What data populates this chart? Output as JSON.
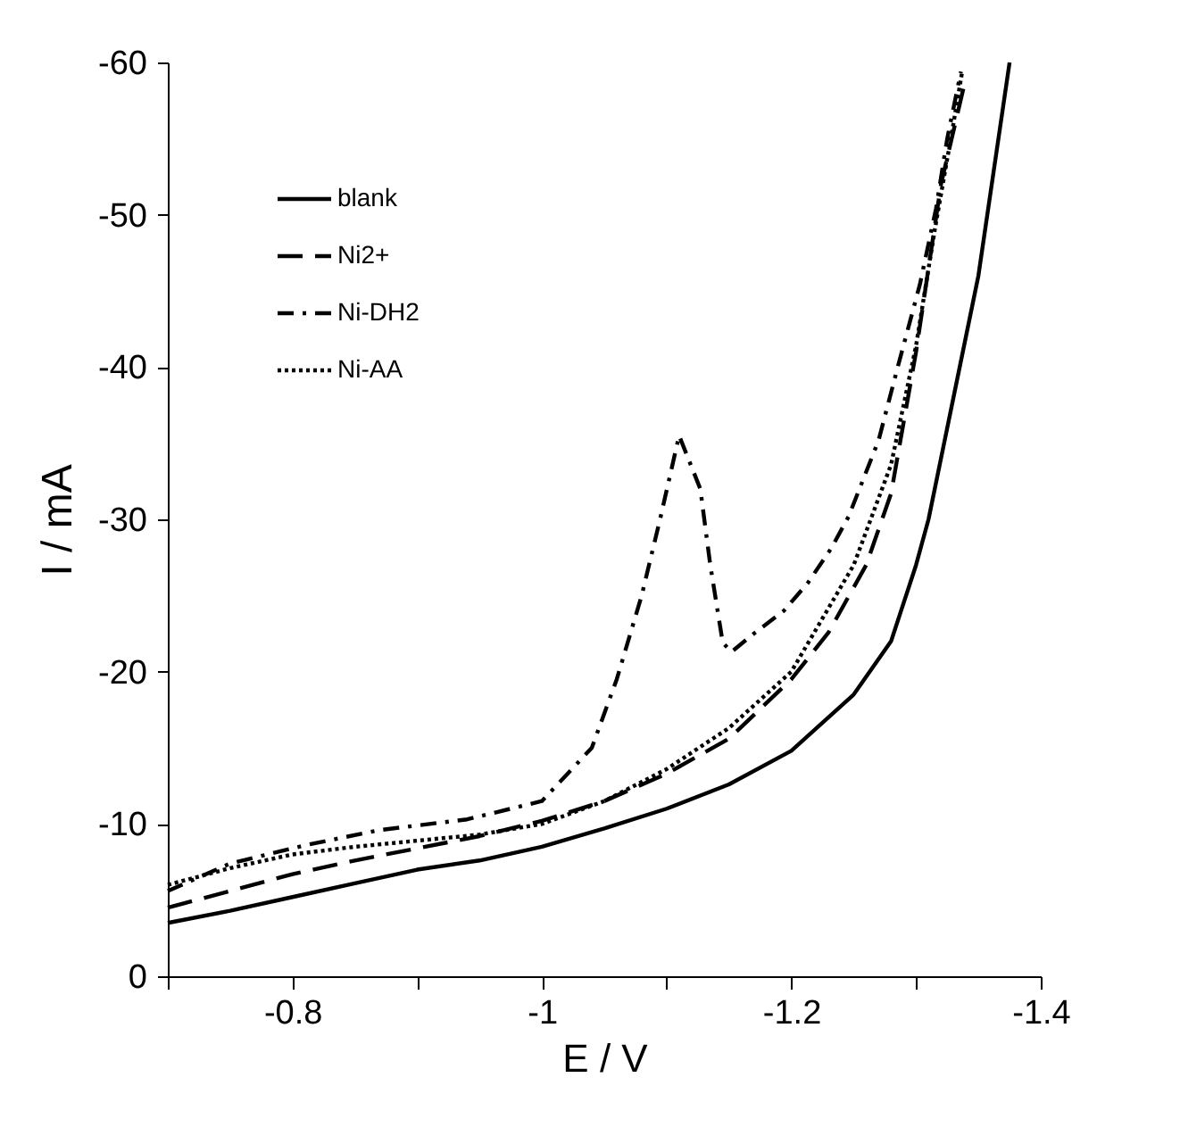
{
  "chart_data": {
    "type": "line",
    "xlabel": "E / V",
    "ylabel": "I / mA",
    "xlim": [
      -0.7,
      -1.4
    ],
    "xticks": [
      {
        "value": -0.7,
        "label": null
      },
      -0.8,
      {
        "value": -0.9,
        "label": null
      },
      -1,
      {
        "value": -1.1,
        "label": null
      },
      -1.2,
      {
        "value": -1.3,
        "label": null
      },
      -1.4
    ],
    "ylim": [
      0,
      -60
    ],
    "yticks": [
      0,
      -10,
      -20,
      -30,
      -40,
      -50,
      -60
    ],
    "grid": false,
    "legend": "top left",
    "series": [
      {
        "name": "blank",
        "color": "#000000",
        "line_style": "solid",
        "x": [
          -0.7,
          -0.75,
          -0.8,
          -0.85,
          -0.9,
          -0.95,
          -1.0,
          -1.05,
          -1.1,
          -1.15,
          -1.2,
          -1.25,
          -1.28,
          -1.3,
          -1.31,
          -1.33,
          -1.35,
          -1.375
        ],
        "values": [
          -3.5,
          -4.3,
          -5.2,
          -6.1,
          -7.0,
          -7.6,
          -8.5,
          -9.7,
          -11.0,
          -12.6,
          -14.8,
          -18.5,
          -22,
          -27,
          -30,
          -38,
          -46,
          -60
        ]
      },
      {
        "name": "Ni2+",
        "color": "#000000",
        "line_style": "dashed",
        "x": [
          -0.7,
          -0.75,
          -0.8,
          -0.85,
          -0.9,
          -0.95,
          -1.0,
          -1.05,
          -1.1,
          -1.15,
          -1.2,
          -1.23,
          -1.26,
          -1.28,
          -1.3,
          -1.32,
          -1.34
        ],
        "values": [
          -4.5,
          -5.6,
          -6.7,
          -7.6,
          -8.4,
          -9.2,
          -10.2,
          -11.5,
          -13.3,
          -15.6,
          -19.5,
          -22.6,
          -27,
          -31.7,
          -41,
          -52,
          -59
        ]
      },
      {
        "name": "Ni-DH2",
        "color": "#000000",
        "line_style": "dashdot",
        "x": [
          -0.7,
          -0.75,
          -0.81,
          -0.87,
          -0.94,
          -1.0,
          -1.04,
          -1.06,
          -1.08,
          -1.095,
          -1.11,
          -1.127,
          -1.135,
          -1.145,
          -1.152,
          -1.17,
          -1.194,
          -1.213,
          -1.232,
          -1.246,
          -1.27,
          -1.285,
          -1.303,
          -1.316,
          -1.325,
          -1.336
        ],
        "values": [
          -5.6,
          -7.4,
          -8.6,
          -9.6,
          -10.3,
          -11.5,
          -15.0,
          -19.5,
          -25.0,
          -30.1,
          -35.5,
          -32.0,
          -27.0,
          -21.9,
          -21.3,
          -22.5,
          -24.0,
          -25.8,
          -28.1,
          -30.2,
          -35.2,
          -39.9,
          -45.4,
          -50.4,
          -55.0,
          -59.4
        ]
      },
      {
        "name": "Ni-AA",
        "color": "#000000",
        "line_style": "dotted",
        "x": [
          -0.7,
          -0.75,
          -0.8,
          -0.85,
          -0.9,
          -0.95,
          -1.0,
          -1.05,
          -1.1,
          -1.15,
          -1.2,
          -1.25,
          -1.28,
          -1.3,
          -1.315,
          -1.33,
          -1.337
        ],
        "values": [
          -6.0,
          -7.1,
          -8.0,
          -8.5,
          -8.9,
          -9.3,
          -10.0,
          -11.5,
          -13.6,
          -16.3,
          -20.0,
          -27.0,
          -33.6,
          -41.4,
          -49.0,
          -56.0,
          -59.4
        ]
      }
    ]
  }
}
